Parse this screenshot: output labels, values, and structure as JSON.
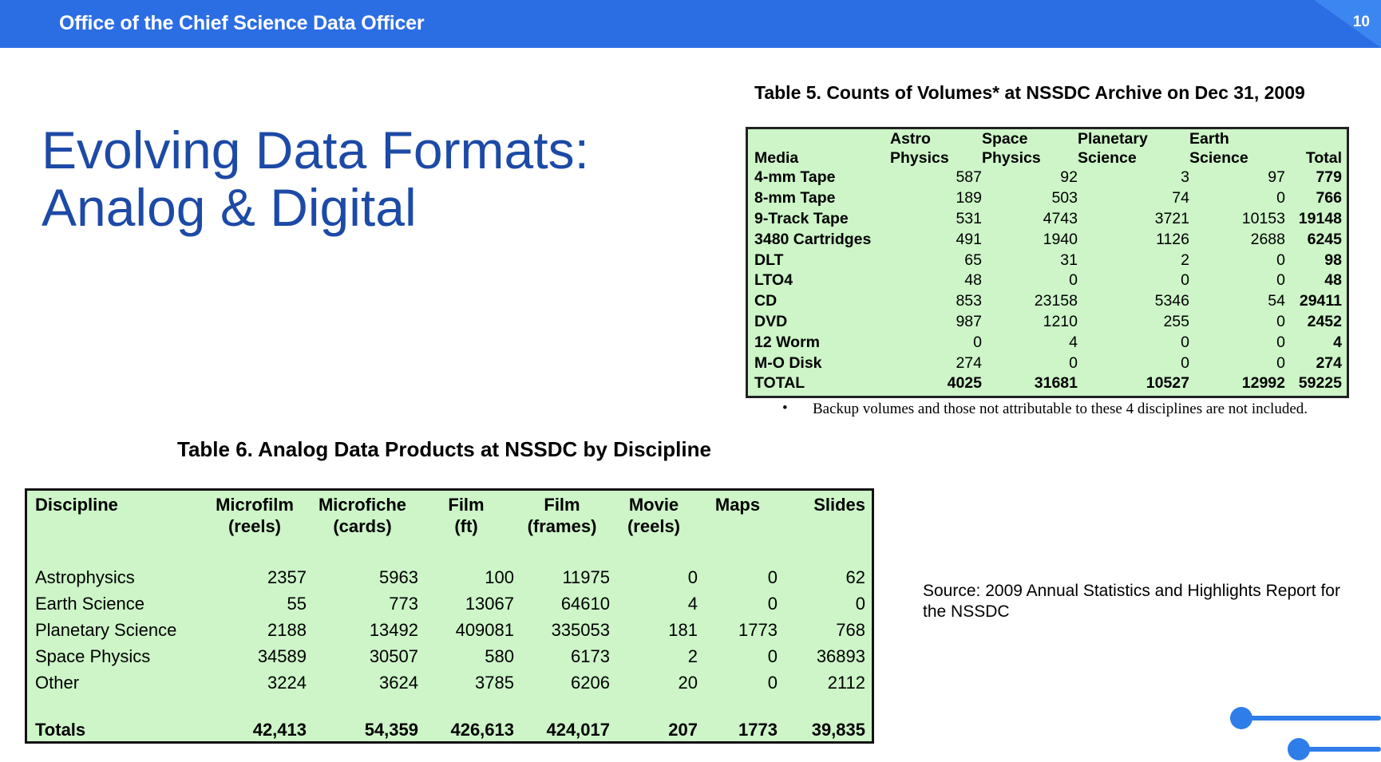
{
  "header": {
    "title": "Office of the Chief Science Data Officer",
    "page_number": "10"
  },
  "slide": {
    "title_line1": "Evolving Data Formats:",
    "title_line2": "Analog & Digital"
  },
  "table5": {
    "caption": "Table 5. Counts of Volumes* at NSSDC Archive on Dec 31, 2009",
    "headers": [
      {
        "line1": "",
        "line2": "Media"
      },
      {
        "line1": "Astro",
        "line2": "Physics"
      },
      {
        "line1": "Space",
        "line2": "Physics"
      },
      {
        "line1": "Planetary",
        "line2": "Science"
      },
      {
        "line1": "Earth",
        "line2": "Science"
      },
      {
        "line1": "",
        "line2": "Total"
      }
    ],
    "rows": [
      [
        "4-mm Tape",
        "587",
        "92",
        "3",
        "97",
        "779"
      ],
      [
        "8-mm Tape",
        "189",
        "503",
        "74",
        "0",
        "766"
      ],
      [
        "9-Track Tape",
        "531",
        "4743",
        "3721",
        "10153",
        "19148"
      ],
      [
        "3480 Cartridges",
        "491",
        "1940",
        "1126",
        "2688",
        "6245"
      ],
      [
        "DLT",
        "65",
        "31",
        "2",
        "0",
        "98"
      ],
      [
        "LTO4",
        "48",
        "0",
        "0",
        "0",
        "48"
      ],
      [
        "CD",
        "853",
        "23158",
        "5346",
        "54",
        "29411"
      ],
      [
        "DVD",
        "987",
        "1210",
        "255",
        "0",
        "2452"
      ],
      [
        "12 Worm",
        "0",
        "4",
        "0",
        "0",
        "4"
      ],
      [
        "M-O Disk",
        "274",
        "0",
        "0",
        "0",
        "274"
      ],
      [
        "TOTAL",
        "4025",
        "31681",
        "10527",
        "12992",
        "59225"
      ]
    ],
    "note_bullet": "•",
    "note": "Backup volumes and those not attributable to these 4 disciplines are not included."
  },
  "table6": {
    "caption": "Table 6.  Analog Data Products at NSSDC by Discipline",
    "headers": [
      {
        "line1": "Discipline",
        "line2": ""
      },
      {
        "line1": "Microfilm",
        "line2": "(reels)"
      },
      {
        "line1": "Microfiche",
        "line2": "(cards)"
      },
      {
        "line1": "Film",
        "line2": "(ft)"
      },
      {
        "line1": "Film",
        "line2": "(frames)"
      },
      {
        "line1": "Movie",
        "line2": "(reels)"
      },
      {
        "line1": "Maps",
        "line2": ""
      },
      {
        "line1": "Slides",
        "line2": ""
      }
    ],
    "rows": [
      [
        "Astrophysics",
        "2357",
        "5963",
        "100",
        "11975",
        "0",
        "0",
        "62"
      ],
      [
        "Earth Science",
        "55",
        "773",
        "13067",
        "64610",
        "4",
        "0",
        "0"
      ],
      [
        "Planetary Science",
        "2188",
        "13492",
        "409081",
        "335053",
        "181",
        "1773",
        "768"
      ],
      [
        "Space Physics",
        "34589",
        "30507",
        "580",
        "6173",
        "2",
        "0",
        "36893"
      ],
      [
        "Other",
        "3224",
        "3624",
        "3785",
        "6206",
        "20",
        "0",
        "2112"
      ]
    ],
    "totals": [
      "Totals",
      "42,413",
      "54,359",
      "426,613",
      "424,017",
      "207",
      "1773",
      "39,835"
    ]
  },
  "source_note": "Source: 2009 Annual Statistics and Highlights Report for the NSSDC",
  "colors": {
    "header_blue": "#2b6de3",
    "title_blue": "#1c4aa6",
    "table_green": "#cdf5c8",
    "accent_blue": "#2f7de9"
  }
}
